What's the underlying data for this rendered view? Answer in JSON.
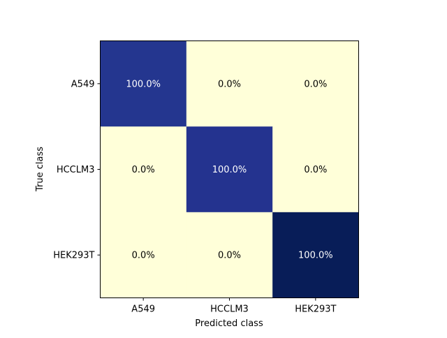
{
  "chart_data": {
    "type": "heatmap",
    "title": "",
    "xlabel": "Predicted class",
    "ylabel": "True class",
    "x_categories": [
      "A549",
      "HCCLM3",
      "HEK293T"
    ],
    "y_categories": [
      "A549",
      "HCCLM3",
      "HEK293T"
    ],
    "values": [
      [
        100.0,
        0.0,
        0.0
      ],
      [
        0.0,
        100.0,
        0.0
      ],
      [
        0.0,
        0.0,
        100.0
      ]
    ],
    "cell_labels": [
      [
        "100.0%",
        "0.0%",
        "0.0%"
      ],
      [
        "0.0%",
        "100.0%",
        "0.0%"
      ],
      [
        "0.0%",
        "0.0%",
        "100.0%"
      ]
    ],
    "cell_colors": [
      [
        "#24368f",
        "#ffffd9",
        "#ffffd9"
      ],
      [
        "#ffffd9",
        "#24338f",
        "#ffffd9"
      ],
      [
        "#ffffd9",
        "#ffffd9",
        "#081d58"
      ]
    ],
    "colormap": "YlGnBu",
    "grid": false
  }
}
